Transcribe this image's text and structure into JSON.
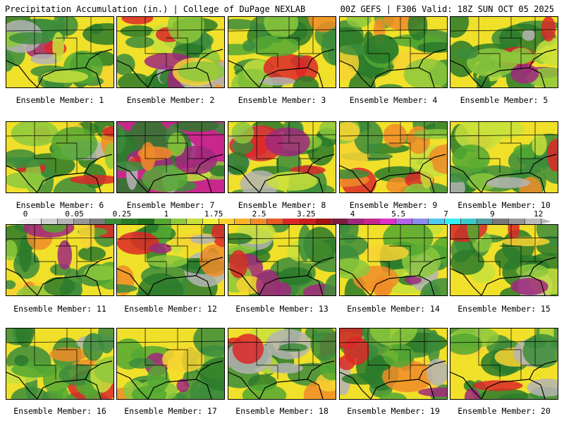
{
  "header": {
    "left": "Precipitation Accumulation (in.) | College of DuPage NEXLAB",
    "right": "00Z GEFS | F306 Valid: 18Z SUN OCT 05 2025"
  },
  "members": [
    {
      "label": "Ensemble Member: 1"
    },
    {
      "label": "Ensemble Member: 2"
    },
    {
      "label": "Ensemble Member: 3"
    },
    {
      "label": "Ensemble Member: 4"
    },
    {
      "label": "Ensemble Member: 5"
    },
    {
      "label": "Ensemble Member: 6"
    },
    {
      "label": "Ensemble Member: 7"
    },
    {
      "label": "Ensemble Member: 8"
    },
    {
      "label": "Ensemble Member: 9"
    },
    {
      "label": "Ensemble Member: 10"
    },
    {
      "label": "Ensemble Member: 11"
    },
    {
      "label": "Ensemble Member: 12"
    },
    {
      "label": "Ensemble Member: 13"
    },
    {
      "label": "Ensemble Member: 14"
    },
    {
      "label": "Ensemble Member: 15"
    },
    {
      "label": "Ensemble Member: 16"
    },
    {
      "label": "Ensemble Member: 17"
    },
    {
      "label": "Ensemble Member: 18"
    },
    {
      "label": "Ensemble Member: 19"
    },
    {
      "label": "Ensemble Member: 20"
    }
  ],
  "colorbar": {
    "colors": [
      "#eeeeee",
      "#d0d0d0",
      "#b4b4b4",
      "#969696",
      "#7c7c7c",
      "#3c8c3c",
      "#2a7a2a",
      "#1e6e1e",
      "#54a832",
      "#8cc83c",
      "#c8e03c",
      "#f0f03c",
      "#f8d232",
      "#f8b428",
      "#f08c28",
      "#e85a28",
      "#dc2828",
      "#c81e1e",
      "#a01414",
      "#781e3c",
      "#a0287c",
      "#c8288c",
      "#dc32c8",
      "#b464e6",
      "#8c8cf0",
      "#50c8f0",
      "#32f0f0",
      "#3cc8c8",
      "#50a0a0",
      "#787878",
      "#969696",
      "#bbbbbb"
    ],
    "ticks": [
      {
        "label": "0",
        "frac": 0.0
      },
      {
        "label": "0.05",
        "frac": 0.095
      },
      {
        "label": "0.25",
        "frac": 0.187
      },
      {
        "label": "1",
        "frac": 0.273
      },
      {
        "label": "1.75",
        "frac": 0.365
      },
      {
        "label": "2.5",
        "frac": 0.453
      },
      {
        "label": "3.25",
        "frac": 0.544
      },
      {
        "label": "4",
        "frac": 0.634
      },
      {
        "label": "5.5",
        "frac": 0.723
      },
      {
        "label": "7",
        "frac": 0.815
      },
      {
        "label": "9",
        "frac": 0.905
      },
      {
        "label": "12",
        "frac": 0.994
      }
    ]
  }
}
